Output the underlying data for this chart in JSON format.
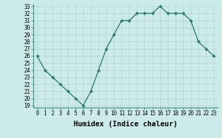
{
  "xlabel": "Humidex (Indice chaleur)",
  "x": [
    0,
    1,
    2,
    3,
    4,
    5,
    6,
    7,
    8,
    9,
    10,
    11,
    12,
    13,
    14,
    15,
    16,
    17,
    18,
    19,
    20,
    21,
    22,
    23
  ],
  "y": [
    26,
    24,
    23,
    22,
    21,
    20,
    19,
    21,
    24,
    27,
    29,
    31,
    31,
    32,
    32,
    32,
    33,
    32,
    32,
    32,
    31,
    28,
    27,
    26
  ],
  "xlim": [
    -0.5,
    23.5
  ],
  "ylim": [
    18.7,
    33.3
  ],
  "yticks": [
    19,
    20,
    21,
    22,
    23,
    24,
    25,
    26,
    27,
    28,
    29,
    30,
    31,
    32,
    33
  ],
  "xticks": [
    0,
    1,
    2,
    3,
    4,
    5,
    6,
    7,
    8,
    9,
    10,
    11,
    12,
    13,
    14,
    15,
    16,
    17,
    18,
    19,
    20,
    21,
    22,
    23
  ],
  "line_color": "#2e7d6e",
  "marker": "D",
  "marker_size": 2.2,
  "bg_color": "#cceaea",
  "grid_color": "#b0d8d8",
  "xlabel_fontsize": 7.5,
  "tick_fontsize": 5.5,
  "linewidth": 1.0
}
